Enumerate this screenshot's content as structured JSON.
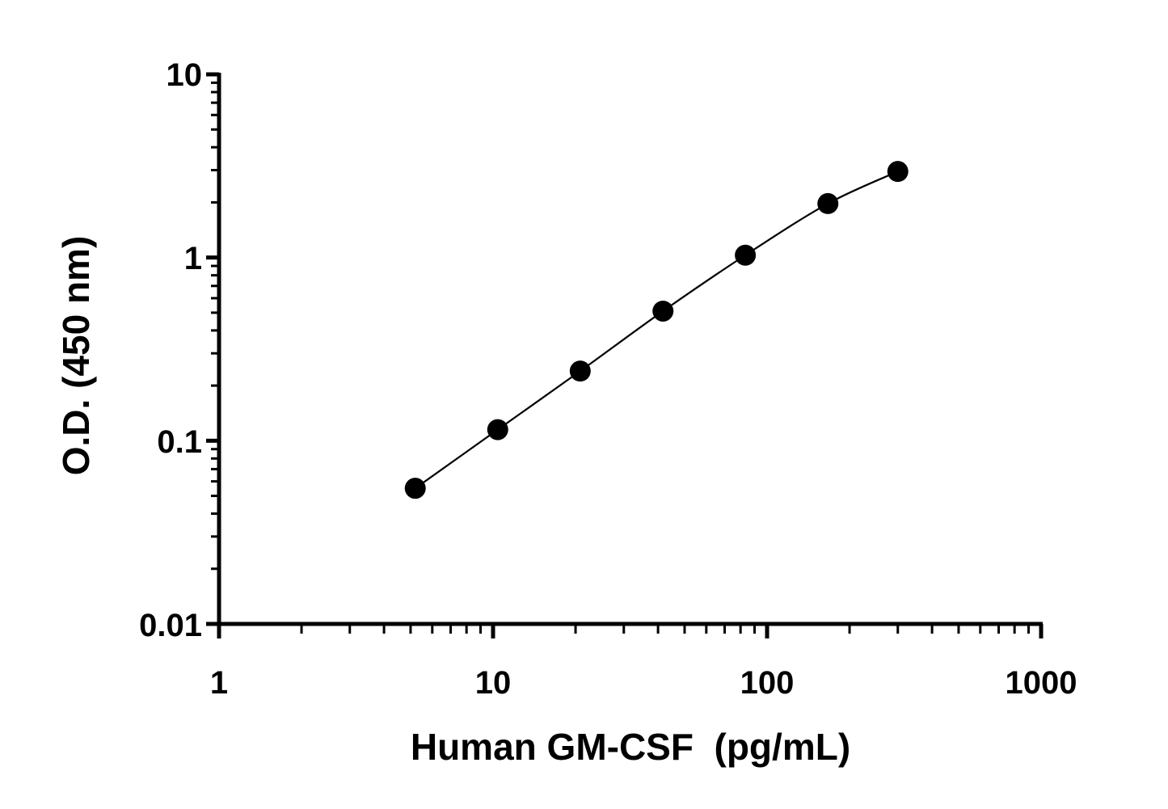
{
  "chart_data": {
    "type": "scatter",
    "title": "",
    "xlabel": "Human GM-CSF  (pg/mL)",
    "ylabel": "O.D. (450 nm)",
    "x_scale": "log",
    "y_scale": "log",
    "xlim": [
      1,
      1000
    ],
    "ylim": [
      0.01,
      10
    ],
    "x_ticks": [
      "1",
      "10",
      "100",
      "1000"
    ],
    "y_ticks": [
      "0.01",
      "0.1",
      "1",
      "10"
    ],
    "grid": false,
    "legend": "none",
    "marker_color": "#000000",
    "line_color": "#000000",
    "fit_curve": true,
    "series": [
      {
        "x": [
          5.2,
          10.4,
          20.8,
          41.7,
          83.3,
          166.7,
          300
        ],
        "y": [
          0.055,
          0.115,
          0.24,
          0.51,
          1.03,
          1.97,
          2.95
        ]
      }
    ]
  }
}
